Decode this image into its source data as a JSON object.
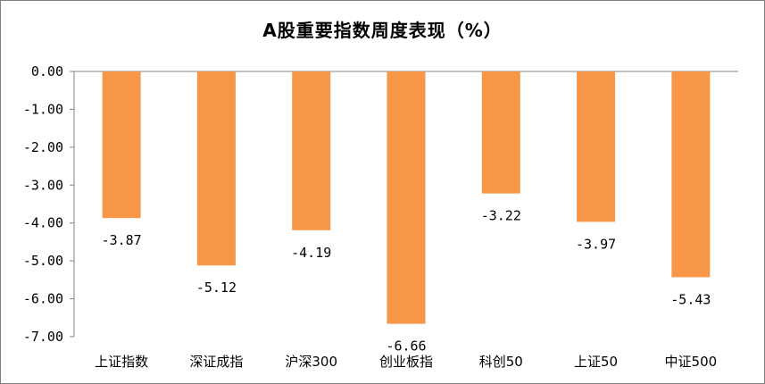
{
  "chart_data": {
    "type": "bar",
    "title": "A股重要指数周度表现（%）",
    "xlabel": "",
    "ylabel": "",
    "categories": [
      "上证指数",
      "深证成指",
      "沪深300",
      "创业板指",
      "科创50",
      "上证50",
      "中证500"
    ],
    "values": [
      -3.87,
      -5.12,
      -4.19,
      -6.66,
      -3.22,
      -3.97,
      -5.43
    ],
    "data_labels": [
      "-3.87",
      "-5.12",
      "-4.19",
      "-6.66",
      "-3.22",
      "-3.97",
      "-5.43"
    ],
    "y_ticks": [
      "0.00",
      "-1.00",
      "-2.00",
      "-3.00",
      "-4.00",
      "-5.00",
      "-6.00",
      "-7.00"
    ],
    "ylim": [
      -7,
      0
    ],
    "grid": false,
    "legend": "none",
    "bar_color": "#F79646"
  }
}
